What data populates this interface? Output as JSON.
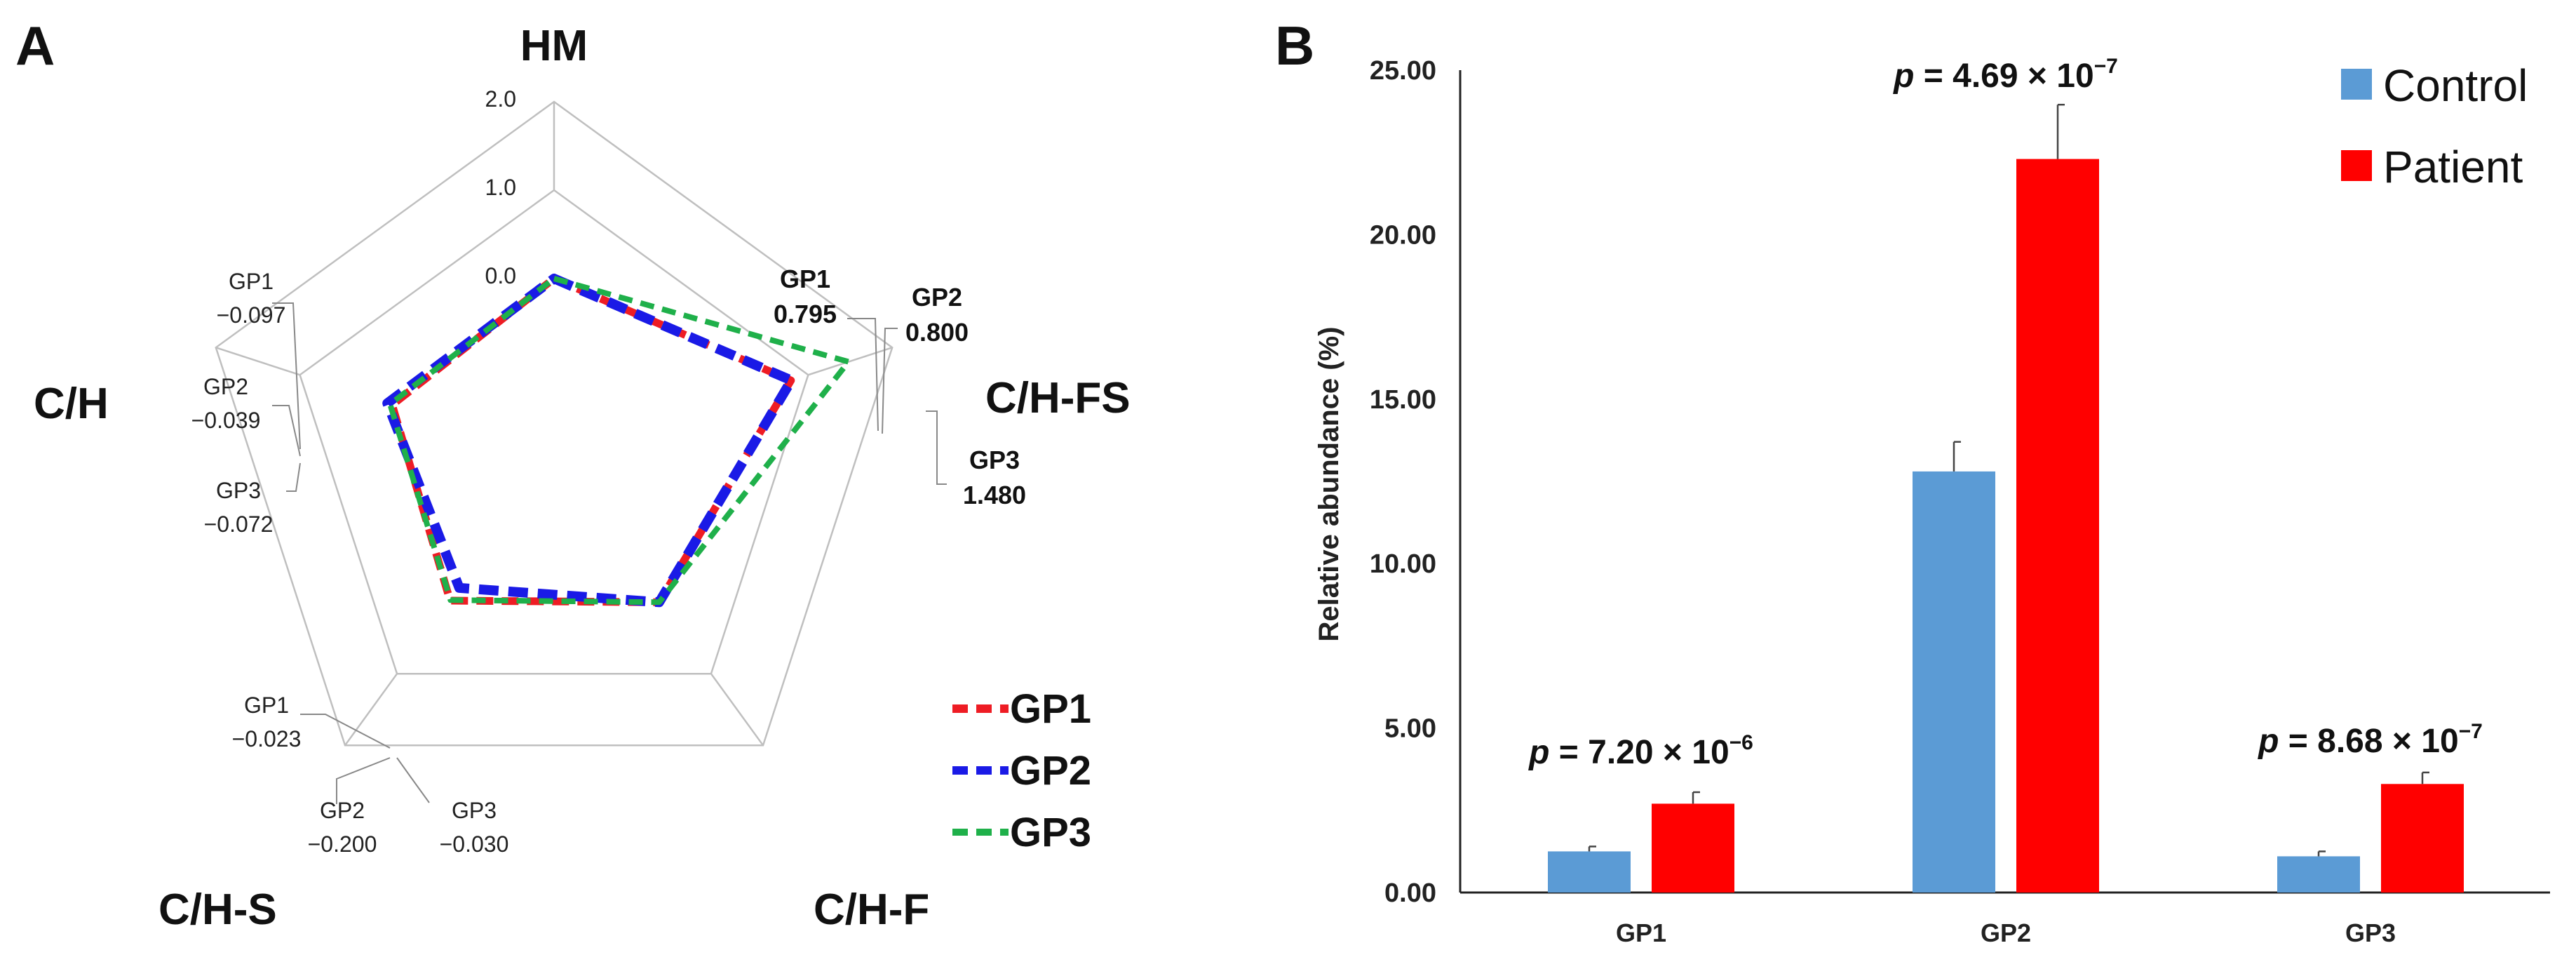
{
  "panel_a_label": "A",
  "panel_b_label": "B",
  "colors": {
    "GP1": "#ee1c24",
    "GP2": "#1a1ae6",
    "GP3": "#1fb04a",
    "control": "#5b9bd5",
    "patient": "#ff0000",
    "grid": "#bfbfbf"
  },
  "chart_data": [
    {
      "type": "radar",
      "axes": [
        "HM",
        "C/H-FS",
        "C/H-F",
        "C/H-S",
        "C/H"
      ],
      "ring_labels": [
        "2.0",
        "1.0",
        "0.0"
      ],
      "rlim": [
        -1.0,
        2.0
      ],
      "series": [
        {
          "name": "GP1",
          "values": [
            0.0,
            0.795,
            0.0,
            -0.023,
            -0.097
          ]
        },
        {
          "name": "GP2",
          "values": [
            0.0,
            0.8,
            0.0,
            -0.2,
            -0.039
          ]
        },
        {
          "name": "GP3",
          "values": [
            0.0,
            1.48,
            0.0,
            -0.03,
            -0.072
          ]
        }
      ],
      "annotations": {
        "ch_gp1_name": "GP1",
        "ch_gp1_val": "−0.097",
        "ch_gp2_name": "GP2",
        "ch_gp2_val": "−0.039",
        "ch_gp3_name": "GP3",
        "ch_gp3_val": "−0.072",
        "cfs_gp1_name": "GP1",
        "cfs_gp1_val": "0.795",
        "cfs_gp2_name": "GP2",
        "cfs_gp2_val": "0.800",
        "cfs_gp3_name": "GP3",
        "cfs_gp3_val": "1.480",
        "chs_gp1_name": "GP1",
        "chs_gp1_val": "−0.023",
        "chs_gp2_name": "GP2",
        "chs_gp2_val": "−0.200",
        "chs_gp3_name": "GP3",
        "chs_gp3_val": "−0.030"
      },
      "legend": [
        "GP1",
        "GP2",
        "GP3"
      ]
    },
    {
      "type": "bar",
      "categories": [
        "GP1",
        "GP2",
        "GP3"
      ],
      "series": [
        {
          "name": "Control",
          "values": [
            1.25,
            12.8,
            1.1
          ],
          "errors": [
            0.15,
            0.9,
            0.15
          ]
        },
        {
          "name": "Patient",
          "values": [
            2.7,
            22.3,
            3.3
          ],
          "errors": [
            0.35,
            1.65,
            0.35
          ]
        }
      ],
      "ylabel": "Relative abundance (%)",
      "ylim": [
        0,
        25
      ],
      "yticks": [
        "0.00",
        "5.00",
        "10.00",
        "15.00",
        "20.00",
        "25.00"
      ],
      "pvalues": [
        {
          "p": "p",
          "rest": " = 7.20 × 10",
          "exp": "−6"
        },
        {
          "p": "p",
          "rest": " = 4.69 × 10",
          "exp": "−7"
        },
        {
          "p": "p",
          "rest": " = 8.68 × 10",
          "exp": "−7"
        }
      ]
    }
  ]
}
